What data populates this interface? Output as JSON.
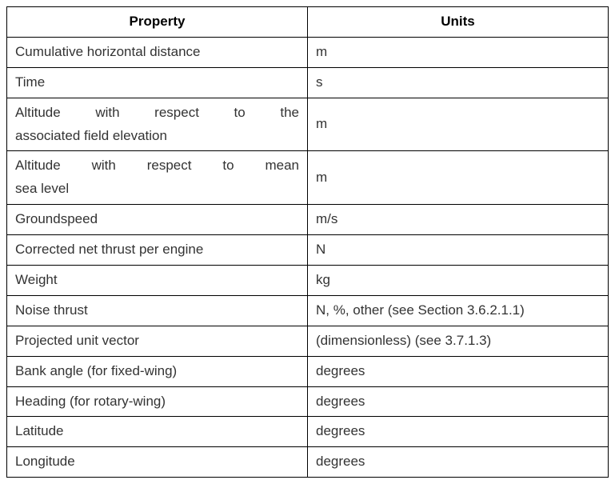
{
  "table": {
    "columns": [
      "Property",
      "Units"
    ],
    "rows": [
      {
        "property": "Cumulative horizontal distance",
        "units": "m",
        "justify": false
      },
      {
        "property": "Time",
        "units": "s",
        "justify": false
      },
      {
        "property_line1": "Altitude with respect to the",
        "property_line2": "associated field elevation",
        "units": "m",
        "two_line": true
      },
      {
        "property_line1": "Altitude with respect to mean",
        "property_line2": "sea level",
        "units": "m",
        "two_line": true
      },
      {
        "property": "Groundspeed",
        "units": "m/s",
        "justify": false
      },
      {
        "property": "Corrected net thrust per engine",
        "units": "N",
        "justify": false
      },
      {
        "property": "Weight",
        "units": "kg",
        "justify": false
      },
      {
        "property": "Noise thrust",
        "units": "N, %, other (see Section 3.6.2.1.1)",
        "justify": false,
        "units_justify": true
      },
      {
        "property": "Projected unit vector",
        "units": "(dimensionless) (see 3.7.1.3)",
        "justify": false
      },
      {
        "property": "Bank angle (for fixed-wing)",
        "units": "degrees",
        "justify": false
      },
      {
        "property": "Heading (for rotary-wing)",
        "units": "degrees",
        "justify": false
      },
      {
        "property": "Latitude",
        "units": "degrees",
        "justify": false
      },
      {
        "property": "Longitude",
        "units": "degrees",
        "justify": false
      }
    ],
    "header_fontweight": "bold",
    "border_color": "#000000",
    "background_color": "#ffffff",
    "font_size": 17,
    "text_color": "#333333"
  }
}
